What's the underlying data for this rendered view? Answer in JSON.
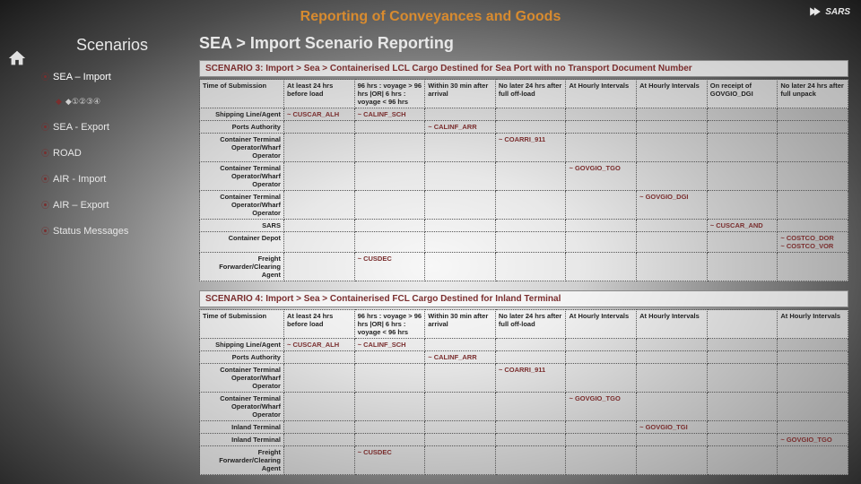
{
  "header": {
    "title": "Reporting of Conveyances and Goods",
    "logo_text": "SARS"
  },
  "sidebar": {
    "title": "Scenarios",
    "items": [
      {
        "label": "SEA – Import",
        "current": true,
        "sub": "◆①②③④"
      },
      {
        "label": "SEA - Export"
      },
      {
        "label": "ROAD"
      },
      {
        "label": "AIR - Import"
      },
      {
        "label": "AIR – Export"
      },
      {
        "label": "Status Messages"
      }
    ]
  },
  "main": {
    "heading": "SEA > Import Scenario Reporting",
    "scenarios": [
      {
        "title": "SCENARIO 3: Import > Sea > Containerised LCL Cargo Destined for Sea Port with no Transport Document Number",
        "columns": [
          "Time of Submission",
          "At least 24 hrs before load",
          "96 hrs : voyage > 96 hrs |OR| 6 hrs : voyage < 96 hrs",
          "Within 30 min after arrival",
          "No later 24 hrs after full off-load",
          "At Hourly Intervals",
          "At Hourly Intervals",
          "On receipt of GOVGIO_DGI",
          "No later 24 hrs after full unpack"
        ],
        "rows": [
          {
            "label": "Shipping Line/Agent",
            "cells": [
              "~ CUSCAR_ALH",
              "~ CALINF_SCH",
              "",
              "",
              "",
              "",
              "",
              ""
            ]
          },
          {
            "label": "Ports Authority",
            "cells": [
              "",
              "",
              "~ CALINF_ARR",
              "",
              "",
              "",
              "",
              ""
            ]
          },
          {
            "label": "Container Terminal Operator/Wharf Operator",
            "cells": [
              "",
              "",
              "",
              "~ COARRI_911",
              "",
              "",
              "",
              ""
            ]
          },
          {
            "label": "Container Terminal Operator/Wharf Operator",
            "cells": [
              "",
              "",
              "",
              "",
              "~ GOVGIO_TGO",
              "",
              "",
              ""
            ]
          },
          {
            "label": "Container Terminal Operator/Wharf Operator",
            "cells": [
              "",
              "",
              "",
              "",
              "",
              "~ GOVGIO_DGI",
              "",
              ""
            ]
          },
          {
            "label": "SARS",
            "cells": [
              "",
              "",
              "",
              "",
              "",
              "",
              "~ CUSCAR_AND",
              ""
            ]
          },
          {
            "label": "Container Depot",
            "cells": [
              "",
              "",
              "",
              "",
              "",
              "",
              "",
              "~ COSTCO_DOR\n~ COSTCO_VOR"
            ]
          },
          {
            "label": "Freight Forwarder/Clearing Agent",
            "cells": [
              "",
              "~ CUSDEC",
              "",
              "",
              "",
              "",
              "",
              ""
            ]
          }
        ]
      },
      {
        "title": "SCENARIO 4: Import > Sea > Containerised FCL Cargo Destined for Inland Terminal",
        "columns": [
          "Time of Submission",
          "At least 24 hrs before load",
          "96 hrs : voyage > 96 hrs |OR| 6 hrs : voyage < 96 hrs",
          "Within 30 min after arrival",
          "No later 24 hrs after full off-load",
          "At Hourly Intervals",
          "At Hourly Intervals",
          "",
          "At Hourly Intervals"
        ],
        "rows": [
          {
            "label": "Shipping Line/Agent",
            "cells": [
              "~ CUSCAR_ALH",
              "~ CALINF_SCH",
              "",
              "",
              "",
              "",
              "",
              ""
            ]
          },
          {
            "label": "Ports Authority",
            "cells": [
              "",
              "",
              "~ CALINF_ARR",
              "",
              "",
              "",
              "",
              ""
            ]
          },
          {
            "label": "Container Terminal Operator/Wharf Operator",
            "cells": [
              "",
              "",
              "",
              "~ COARRI_911",
              "",
              "",
              "",
              ""
            ]
          },
          {
            "label": "Container Terminal Operator/Wharf Operator",
            "cells": [
              "",
              "",
              "",
              "",
              "~ GOVGIO_TGO",
              "",
              "",
              ""
            ]
          },
          {
            "label": "Inland Terminal",
            "cells": [
              "",
              "",
              "",
              "",
              "",
              "~ GOVGIO_TGI",
              "",
              ""
            ]
          },
          {
            "label": "Inland Terminal",
            "cells": [
              "",
              "",
              "",
              "",
              "",
              "",
              "",
              "~ GOVGIO_TGO"
            ]
          },
          {
            "label": "Freight Forwarder/Clearing Agent",
            "cells": [
              "",
              "~ CUSDEC",
              "",
              "",
              "",
              "",
              "",
              ""
            ]
          }
        ]
      }
    ]
  },
  "colors": {
    "accent_orange": "#d88b2f",
    "accent_maroon": "#7a2e2e"
  }
}
